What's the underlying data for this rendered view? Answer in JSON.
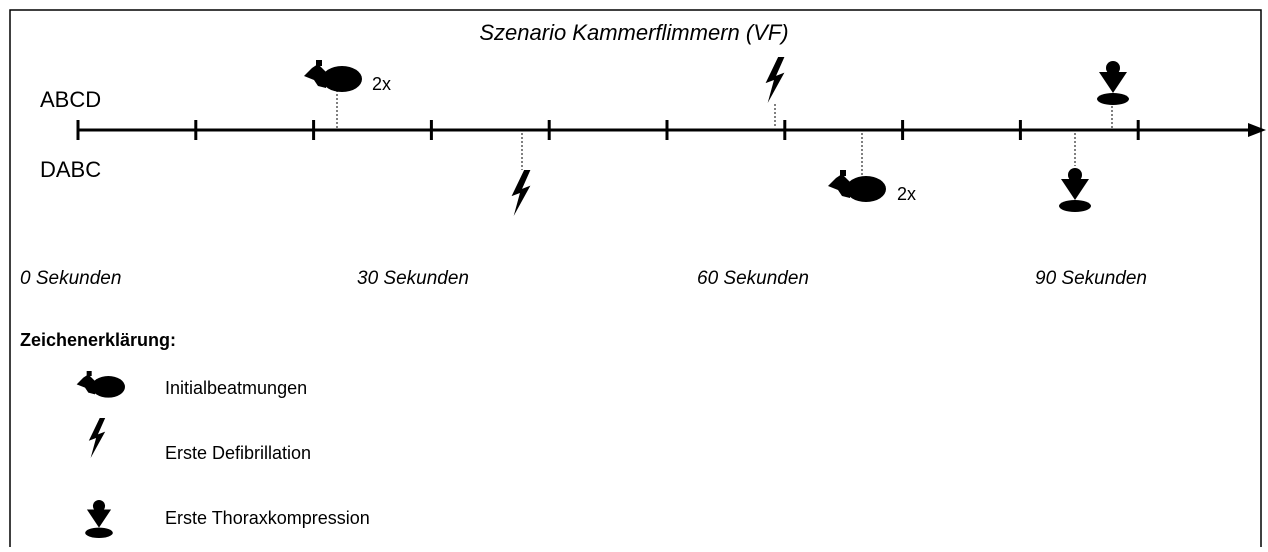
{
  "title": "Szenario Kammerflimmern (VF)",
  "rows": [
    "ABCD",
    "DABC"
  ],
  "events": {
    "abcd_ventilation": "2x",
    "dabc_ventilation": "2x"
  },
  "axis_labels": [
    "0 Sekunden",
    "30 Sekunden",
    "60 Sekunden",
    "90 Sekunden"
  ],
  "legend": {
    "title": "Zeichenerklärung:",
    "items": [
      "Initialbeatmungen",
      "Erste Defibrillation",
      "Erste Thoraxkompression"
    ]
  }
}
